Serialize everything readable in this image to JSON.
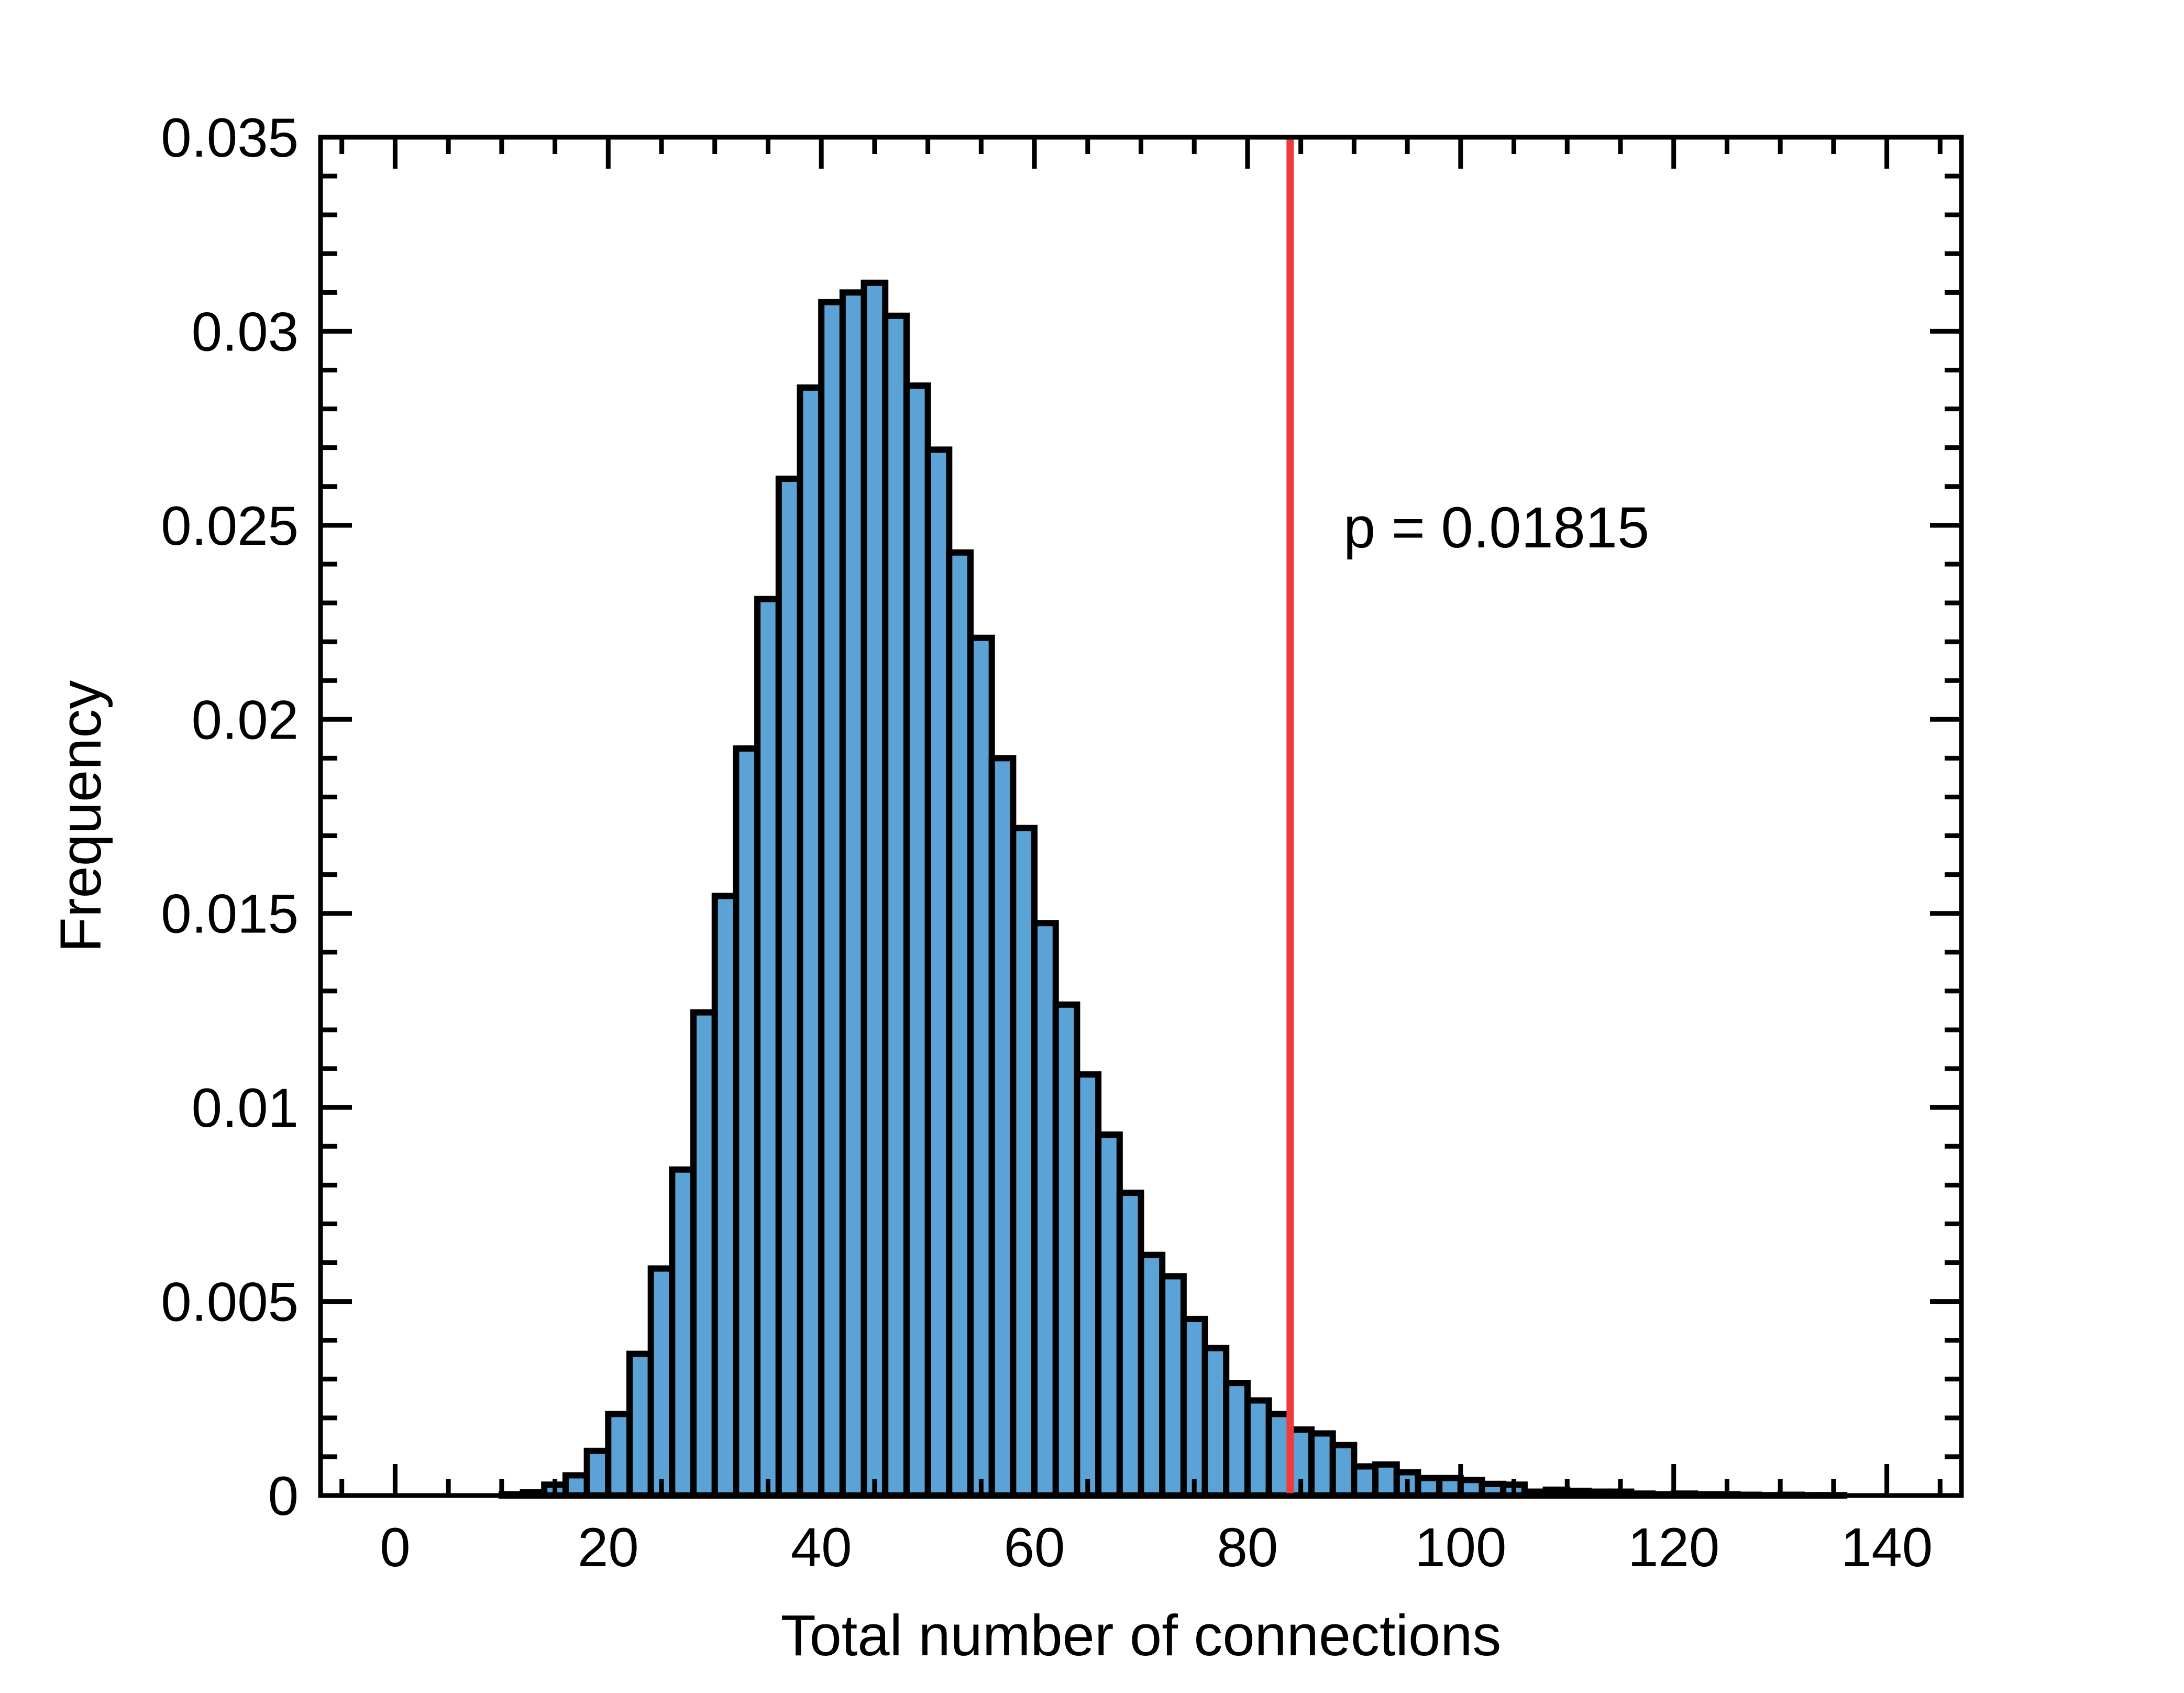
{
  "chart_data": {
    "type": "bar",
    "subtype": "histogram",
    "title": "",
    "xlabel": "Total number of connections",
    "ylabel": "Frequency",
    "xlim": [
      -7,
      147
    ],
    "ylim": [
      0,
      0.035
    ],
    "x_ticks": [
      "0",
      "20",
      "40",
      "60",
      "80",
      "100",
      "120",
      "140"
    ],
    "y_ticks": [
      "0",
      "0.005",
      "0.01",
      "0.015",
      "0.02",
      "0.025",
      "0.03",
      "0.035"
    ],
    "bin_width": 2,
    "bins_start": [
      0,
      2,
      4,
      6,
      8,
      10,
      12,
      14,
      16,
      18,
      20,
      22,
      24,
      26,
      28,
      30,
      32,
      34,
      36,
      38,
      40,
      42,
      44,
      46,
      48,
      50,
      52,
      54,
      56,
      58,
      60,
      62,
      64,
      66,
      68,
      70,
      72,
      74,
      76,
      78,
      80,
      82,
      84,
      86,
      88,
      90,
      92,
      94,
      96,
      98,
      100,
      102,
      104,
      106,
      108,
      110,
      112,
      114,
      116,
      118,
      120,
      122,
      124,
      126,
      128,
      130,
      132,
      134,
      136,
      138
    ],
    "values": [
      0,
      0,
      0,
      0,
      0,
      3e-05,
      8e-05,
      0.00028,
      0.00052,
      0.00115,
      0.0021,
      0.00365,
      0.00585,
      0.0084,
      0.01245,
      0.01545,
      0.01925,
      0.0231,
      0.0262,
      0.02855,
      0.03075,
      0.031,
      0.03125,
      0.0304,
      0.0286,
      0.02695,
      0.0243,
      0.0221,
      0.019,
      0.0172,
      0.01475,
      0.01265,
      0.01085,
      0.0093,
      0.0078,
      0.0062,
      0.00565,
      0.00455,
      0.0038,
      0.0029,
      0.00245,
      0.0021,
      0.0017,
      0.0016,
      0.0013,
      0.00075,
      0.0008,
      0.0006,
      0.00045,
      0.00045,
      0.0004,
      0.0003,
      0.00028,
      0.0001,
      0.00015,
      0.00012,
      0.0001,
      0.0001,
      5e-05,
      3e-05,
      5e-05,
      3e-05,
      3e-05,
      2e-05,
      1e-05,
      2e-05,
      1e-05,
      1e-05,
      0,
      0
    ],
    "threshold": {
      "x": 84,
      "label": "p = 0.01815",
      "color": "#ee3c3c"
    },
    "bar_color": "#5ba3d6",
    "edge_color": "#000000",
    "grid": false,
    "legend": "none"
  }
}
